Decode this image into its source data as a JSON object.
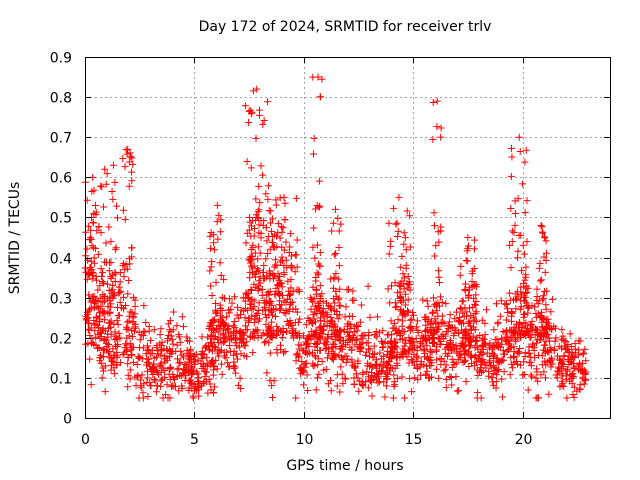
{
  "chart_data": {
    "type": "scatter",
    "title": "Day 172 of 2024, SRMTID for receiver trlv",
    "xlabel": "GPS time / hours",
    "ylabel": "SRMTID / TECUs",
    "xlim": [
      0,
      24
    ],
    "ylim": [
      0,
      0.9
    ],
    "x_ticks": [
      0,
      5,
      10,
      15,
      20
    ],
    "x_tick_labels": [
      "0",
      "5",
      "10",
      "15",
      "20"
    ],
    "y_ticks": [
      0,
      0.1,
      0.2,
      0.3,
      0.4,
      0.5,
      0.6,
      0.7,
      0.8,
      0.9
    ],
    "y_tick_labels": [
      "0",
      "0.1",
      "0.2",
      "0.3",
      "0.4",
      "0.5",
      "0.6",
      "0.7",
      "0.8",
      "0.9"
    ],
    "grid": true,
    "marker": "+",
    "color": "#ff0000",
    "x_max_observed": 22.9,
    "trend": {
      "x": [
        0.0,
        0.3,
        0.6,
        0.9,
        1.2,
        1.5,
        1.8,
        2.1,
        2.4,
        2.8,
        3.2,
        3.6,
        4.0,
        4.4,
        4.8,
        5.2,
        5.6,
        6.0,
        6.4,
        6.8,
        7.2,
        7.5,
        7.8,
        8.1,
        8.4,
        8.7,
        9.0,
        9.3,
        9.6,
        9.9,
        10.2,
        10.5,
        10.8,
        11.1,
        11.4,
        11.7,
        12.0,
        12.4,
        12.8,
        13.2,
        13.6,
        14.0,
        14.3,
        14.6,
        15.0,
        15.4,
        15.8,
        16.1,
        16.4,
        16.8,
        17.2,
        17.6,
        18.0,
        18.4,
        18.8,
        19.2,
        19.6,
        20.0,
        20.4,
        20.8,
        21.2,
        21.6,
        22.0,
        22.4,
        22.9
      ],
      "y": [
        0.3,
        0.34,
        0.27,
        0.22,
        0.24,
        0.25,
        0.3,
        0.22,
        0.18,
        0.16,
        0.14,
        0.14,
        0.15,
        0.14,
        0.13,
        0.11,
        0.14,
        0.18,
        0.2,
        0.21,
        0.2,
        0.3,
        0.35,
        0.3,
        0.28,
        0.3,
        0.28,
        0.24,
        0.22,
        0.14,
        0.18,
        0.25,
        0.22,
        0.18,
        0.2,
        0.21,
        0.2,
        0.19,
        0.17,
        0.15,
        0.14,
        0.13,
        0.22,
        0.27,
        0.17,
        0.17,
        0.18,
        0.22,
        0.2,
        0.18,
        0.19,
        0.22,
        0.17,
        0.15,
        0.14,
        0.19,
        0.22,
        0.25,
        0.17,
        0.21,
        0.2,
        0.15,
        0.13,
        0.13,
        0.12
      ]
    },
    "bursts": [
      {
        "x": [
          0.0,
          0.7
        ],
        "y": [
          0.18,
          0.6
        ]
      },
      {
        "x": [
          0.7,
          1.1
        ],
        "y": [
          0.1,
          0.62
        ]
      },
      {
        "x": [
          1.1,
          1.5
        ],
        "y": [
          0.12,
          0.63
        ]
      },
      {
        "x": [
          1.7,
          2.2
        ],
        "y": [
          0.15,
          0.67
        ]
      },
      {
        "x": [
          5.7,
          6.4
        ],
        "y": [
          0.2,
          0.53
        ]
      },
      {
        "x": [
          7.3,
          8.4
        ],
        "y": [
          0.2,
          0.82
        ]
      },
      {
        "x": [
          8.4,
          9.8
        ],
        "y": [
          0.2,
          0.55
        ]
      },
      {
        "x": [
          10.4,
          10.9
        ],
        "y": [
          0.2,
          0.85
        ]
      },
      {
        "x": [
          11.2,
          11.7
        ],
        "y": [
          0.2,
          0.52
        ]
      },
      {
        "x": [
          13.8,
          14.9
        ],
        "y": [
          0.15,
          0.55
        ]
      },
      {
        "x": [
          15.9,
          16.3
        ],
        "y": [
          0.2,
          0.79
        ]
      },
      {
        "x": [
          17.1,
          17.9
        ],
        "y": [
          0.15,
          0.45
        ]
      },
      {
        "x": [
          19.4,
          20.3
        ],
        "y": [
          0.2,
          0.7
        ]
      },
      {
        "x": [
          20.6,
          21.1
        ],
        "y": [
          0.2,
          0.48
        ]
      }
    ],
    "point_count": 1900,
    "seed": 172
  }
}
